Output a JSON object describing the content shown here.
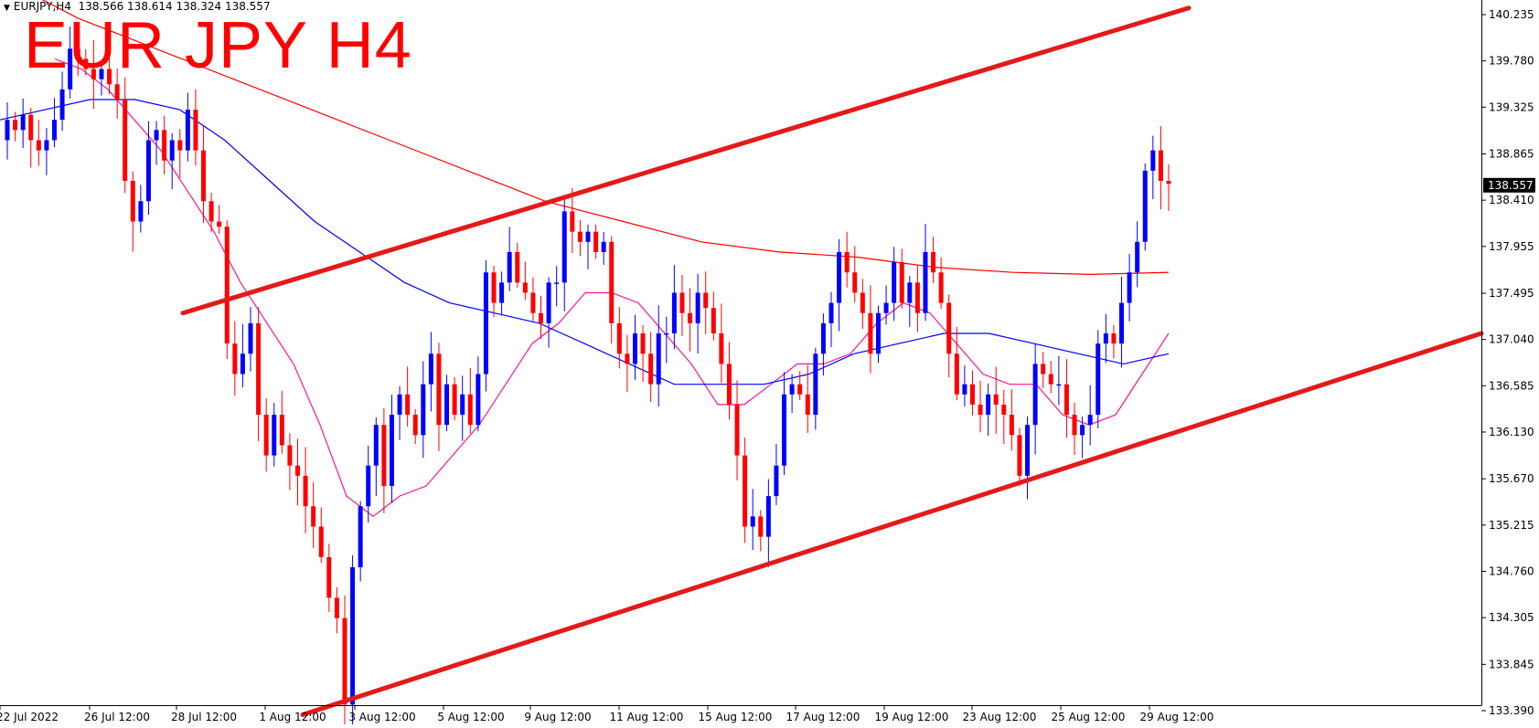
{
  "header": {
    "symbol_timeframe": "EURJPY,H4",
    "open": "138.566",
    "high": "138.614",
    "low": "138.324",
    "close": "138.557"
  },
  "overlay_title": "EUR JPY H4",
  "current_price_label": "138.557",
  "colors": {
    "bull": "#0000ff",
    "bear": "#ff0000",
    "ma_fast": "#ff1493",
    "ma_mid": "#0000ff",
    "ma_slow": "#ff0000",
    "trendline": "#e41a1a",
    "price_tag_bg": "#000000"
  },
  "chart_data": {
    "type": "candlestick",
    "title": "EUR JPY H4",
    "ylim": [
      133.3,
      140.35
    ],
    "y_ticks": [
      "140.235",
      "139.780",
      "139.325",
      "138.865",
      "138.410",
      "137.955",
      "137.495",
      "137.040",
      "136.585",
      "136.130",
      "135.670",
      "135.215",
      "134.760",
      "134.305",
      "133.845",
      "133.390"
    ],
    "x_ticks": [
      "22 Jul 2022",
      "26 Jul 12:00",
      "28 Jul 12:00",
      "1 Aug 12:00",
      "3 Aug 12:00",
      "5 Aug 12:00",
      "9 Aug 12:00",
      "11 Aug 12:00",
      "15 Aug 12:00",
      "17 Aug 12:00",
      "19 Aug 12:00",
      "23 Aug 12:00",
      "25 Aug 12:00",
      "29 Aug 12:00"
    ],
    "candles_close": [
      139.2,
      139.1,
      139.25,
      139.0,
      138.9,
      139.0,
      139.2,
      139.5,
      139.9,
      139.8,
      139.7,
      139.6,
      139.7,
      139.55,
      139.4,
      138.6,
      138.2,
      138.4,
      139.0,
      139.1,
      138.8,
      139.0,
      138.9,
      139.3,
      138.9,
      138.4,
      138.2,
      138.15,
      137.0,
      136.7,
      136.9,
      137.2,
      136.3,
      135.9,
      136.3,
      136.0,
      135.8,
      135.7,
      135.4,
      135.2,
      134.9,
      134.5,
      134.3,
      133.45,
      134.8,
      135.4,
      135.8,
      136.2,
      135.6,
      136.3,
      136.5,
      136.3,
      136.1,
      136.6,
      136.9,
      136.2,
      136.6,
      136.3,
      136.5,
      136.2,
      136.7,
      137.7,
      137.4,
      137.6,
      137.9,
      137.6,
      137.5,
      137.3,
      137.2,
      137.6,
      137.6,
      138.3,
      138.1,
      138.0,
      138.1,
      137.9,
      138.0,
      137.2,
      136.9,
      136.8,
      137.1,
      136.9,
      136.6,
      137.1,
      137.1,
      137.5,
      137.3,
      137.2,
      137.5,
      137.35,
      137.1,
      136.8,
      136.4,
      135.9,
      135.2,
      135.3,
      135.1,
      135.5,
      135.8,
      136.5,
      136.6,
      136.5,
      136.3,
      136.9,
      137.2,
      137.4,
      137.9,
      137.7,
      137.5,
      137.3,
      136.9,
      137.3,
      137.4,
      137.8,
      137.4,
      137.6,
      137.3,
      137.9,
      137.7,
      137.4,
      136.9,
      136.5,
      136.6,
      136.4,
      136.3,
      136.5,
      136.4,
      136.3,
      136.1,
      135.7,
      136.2,
      136.8,
      136.7,
      136.6,
      136.6,
      136.3,
      136.1,
      136.2,
      136.3,
      137.0,
      137.1,
      137.0,
      137.4,
      137.7,
      138.0,
      138.7,
      138.9,
      138.6,
      138.57
    ],
    "moving_averages": [
      {
        "role": "fast",
        "values": [
          139.8,
          139.7,
          139.5,
          139.2,
          138.9,
          138.5,
          138.1,
          137.6,
          137.2,
          136.8,
          136.2,
          135.5,
          135.3,
          135.5,
          135.6,
          135.9,
          136.2,
          136.6,
          137.0,
          137.2,
          137.5,
          137.5,
          137.4,
          137.1,
          136.8,
          136.4,
          136.4,
          136.6,
          136.8,
          136.8,
          136.9,
          137.2,
          137.4,
          137.3,
          137.0,
          136.7,
          136.6,
          136.6,
          136.3,
          136.2,
          136.3,
          136.7,
          137.1
        ]
      },
      {
        "role": "mid",
        "values": [
          139.2,
          139.3,
          139.4,
          139.4,
          139.3,
          139.0,
          138.6,
          138.2,
          137.9,
          137.6,
          137.4,
          137.3,
          137.2,
          137.0,
          136.8,
          136.6,
          136.6,
          136.6,
          136.7,
          136.9,
          137.0,
          137.1,
          137.1,
          137.0,
          136.9,
          136.8,
          136.9
        ]
      },
      {
        "role": "slow",
        "values": [
          140.6,
          140.2,
          139.9,
          139.6,
          139.3,
          139.0,
          138.7,
          138.4,
          138.2,
          138.0,
          137.9,
          137.85,
          137.75,
          137.7,
          137.68,
          137.7
        ]
      }
    ],
    "trendlines": [
      {
        "from": {
          "x": "28 Jul 12:00",
          "y": 137.3
        },
        "to": {
          "x": "30 Aug 08:00",
          "y": 140.3
        }
      },
      {
        "from": {
          "x": "1 Aug 12:00",
          "y": 133.35
        },
        "to": {
          "x": "31 Aug 00:00",
          "y": 137.1
        }
      }
    ]
  }
}
